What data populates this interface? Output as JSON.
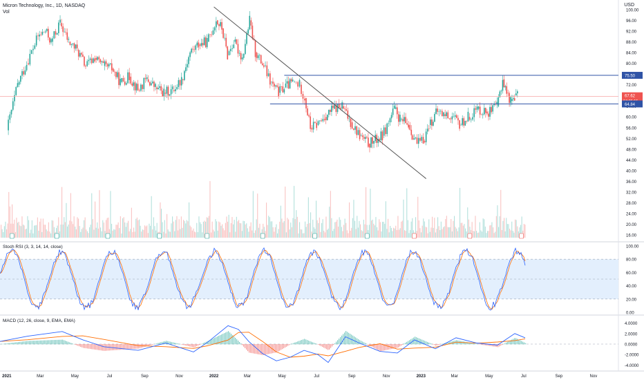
{
  "header": {
    "symbol_line": "Micron Technology, Inc., 1D, NASDAQ",
    "volume_label": "Vol",
    "currency": "USD"
  },
  "colors": {
    "up": "#26a69a",
    "down": "#ef5350",
    "trendline": "#555555",
    "hline": "#2f53a6",
    "hline_red": "#f7a6a6",
    "rsi_k": "#2962ff",
    "rsi_d": "#ff6d00",
    "macd": "#2962ff",
    "signal": "#ff6d00",
    "band": "#e3effd"
  },
  "chart_data": [
    {
      "type": "line",
      "name": "price",
      "title": "Micron Technology, Inc., 1D, NASDAQ",
      "x_ticks": [
        "2021",
        "Mar",
        "May",
        "Jul",
        "Sep",
        "Nov",
        "2022",
        "Mar",
        "May",
        "Jul",
        "Sep",
        "Nov",
        "2023",
        "Mar",
        "May",
        "Jul",
        "Sep",
        "Nov"
      ],
      "y_ticks": [
        "100.00",
        "96.00",
        "92.00",
        "88.00",
        "84.00",
        "80.00",
        "76.00",
        "72.00",
        "68.00",
        "64.00",
        "60.00",
        "56.00",
        "52.00",
        "48.00",
        "44.00",
        "40.00",
        "36.00",
        "32.00",
        "28.00",
        "24.00",
        "20.00",
        "16.00"
      ],
      "ylim": [
        15,
        101
      ],
      "series_points": [
        [
          "2021-01-01",
          55
        ],
        [
          "2021-01-20",
          72
        ],
        [
          "2021-02-05",
          80
        ],
        [
          "2021-02-25",
          90
        ],
        [
          "2021-03-10",
          92
        ],
        [
          "2021-03-20",
          88
        ],
        [
          "2021-04-05",
          95
        ],
        [
          "2021-04-20",
          88
        ],
        [
          "2021-05-05",
          85
        ],
        [
          "2021-05-20",
          79
        ],
        [
          "2021-06-05",
          82
        ],
        [
          "2021-06-20",
          79
        ],
        [
          "2021-07-05",
          78
        ],
        [
          "2021-07-20",
          73
        ],
        [
          "2021-08-05",
          75
        ],
        [
          "2021-08-20",
          70
        ],
        [
          "2021-09-05",
          74
        ],
        [
          "2021-09-20",
          71
        ],
        [
          "2021-10-05",
          69
        ],
        [
          "2021-10-20",
          70
        ],
        [
          "2021-11-05",
          74
        ],
        [
          "2021-11-20",
          84
        ],
        [
          "2021-12-05",
          87
        ],
        [
          "2021-12-20",
          88
        ],
        [
          "2022-01-05",
          96
        ],
        [
          "2022-01-15",
          93
        ],
        [
          "2022-01-25",
          83
        ],
        [
          "2022-02-05",
          88
        ],
        [
          "2022-02-20",
          82
        ],
        [
          "2022-03-05",
          96
        ],
        [
          "2022-03-15",
          84
        ],
        [
          "2022-03-30",
          79
        ],
        [
          "2022-04-10",
          73
        ],
        [
          "2022-04-25",
          69
        ],
        [
          "2022-05-05",
          71
        ],
        [
          "2022-05-20",
          73
        ],
        [
          "2022-06-01",
          72
        ],
        [
          "2022-06-10",
          67
        ],
        [
          "2022-06-20",
          56
        ],
        [
          "2022-07-01",
          57
        ],
        [
          "2022-07-15",
          60
        ],
        [
          "2022-07-30",
          63
        ],
        [
          "2022-08-15",
          64
        ],
        [
          "2022-08-30",
          58
        ],
        [
          "2022-09-15",
          53
        ],
        [
          "2022-09-30",
          50
        ],
        [
          "2022-10-10",
          51
        ],
        [
          "2022-10-25",
          53
        ],
        [
          "2022-11-05",
          58
        ],
        [
          "2022-11-15",
          63
        ],
        [
          "2022-11-25",
          59
        ],
        [
          "2022-12-10",
          57
        ],
        [
          "2022-12-25",
          50
        ],
        [
          "2023-01-05",
          51
        ],
        [
          "2023-01-15",
          57
        ],
        [
          "2023-01-30",
          62
        ],
        [
          "2023-02-10",
          61
        ],
        [
          "2023-02-25",
          60
        ],
        [
          "2023-03-10",
          57
        ],
        [
          "2023-03-25",
          60
        ],
        [
          "2023-04-10",
          63
        ],
        [
          "2023-04-25",
          62
        ],
        [
          "2023-05-05",
          62
        ],
        [
          "2023-05-15",
          64
        ],
        [
          "2023-05-25",
          74
        ],
        [
          "2023-06-01",
          69
        ],
        [
          "2023-06-08",
          66
        ],
        [
          "2023-06-15",
          68
        ],
        [
          "2023-06-20",
          67.62
        ]
      ],
      "price_labels": {
        "upper_line": "75.50",
        "last_price": "67.62",
        "countdown": "04:05:15",
        "lower_line": "64.84"
      },
      "horizontal_lines": [
        75.5,
        64.84
      ],
      "last_price_line": 67.62,
      "trendline": {
        "from": [
          "2022-01-01",
          101
        ],
        "to": [
          "2023-01-10",
          37
        ]
      }
    },
    {
      "type": "bar",
      "name": "volume",
      "title": "Vol",
      "y_ticks": [],
      "note": "volume histogram under price, overlaid on lower price region"
    },
    {
      "type": "line",
      "title": "Stoch RSI (3, 3, 14, 14, close)",
      "y_ticks": [
        "100.00",
        "80.00",
        "60.00",
        "40.00",
        "20.00",
        "0.00"
      ],
      "ylim": [
        0,
        100
      ],
      "band": [
        20,
        80
      ],
      "series": [
        {
          "name": "%K"
        },
        {
          "name": "%D"
        }
      ]
    },
    {
      "type": "line",
      "title": "MACD (12, 26, close, 9, EMA, EMA)",
      "y_ticks": [
        "4.0000",
        "2.0000",
        "0.0000",
        "-2.0000",
        "-4.0000"
      ],
      "ylim": [
        -5,
        5
      ],
      "series": [
        {
          "name": "MACD"
        },
        {
          "name": "Signal"
        },
        {
          "name": "Histogram"
        }
      ]
    }
  ]
}
